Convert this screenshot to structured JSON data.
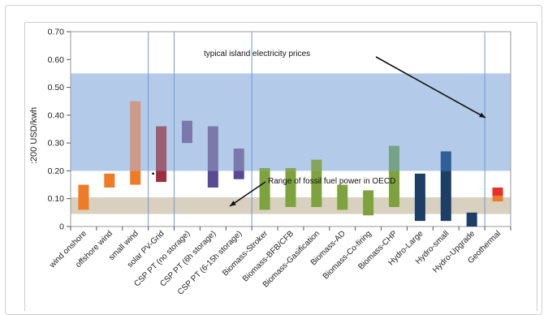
{
  "chart_data": {
    "type": "floating-bar",
    "ylabel": ":200 USD/kwh",
    "ylim": [
      0,
      0.7
    ],
    "yticks": [
      "0",
      "0.10",
      "0.20",
      "0.30",
      "0.40",
      "0.50",
      "0.60",
      "0.70"
    ],
    "categories": [
      "wind onshore",
      "offshore wind",
      "small wind",
      "solar PV-Grid",
      "CSP PT (no storage)",
      "CSP PT (6h storage)",
      "CSP PT (6-15h storage)",
      "Biomass-Stroker",
      "Biomass-BFB/CFB",
      "Biomass-Gasification",
      "Biomass-AD",
      "Biomass-Co-firing",
      "Biomass-CHP",
      "Hydro-Large",
      "Hydro-small",
      "Hydro-Upgrade",
      "Geothermal"
    ],
    "bands": [
      {
        "name": "typical island electricity prices",
        "from": 0.2,
        "to": 0.55,
        "color": "#b3cbe9"
      },
      {
        "name": "Range of fossil fuel power in OECD",
        "from": 0.045,
        "to": 0.105,
        "color": "#d8d1bf"
      }
    ],
    "bars": [
      {
        "segments": [
          [
            0.06,
            0.15,
            "#ef7b27"
          ]
        ]
      },
      {
        "segments": [
          [
            0.14,
            0.19,
            "#ef7b27"
          ]
        ]
      },
      {
        "segments": [
          [
            0.15,
            0.2,
            "#ef7b27"
          ],
          [
            0.2,
            0.45,
            "#cf9a85"
          ]
        ]
      },
      {
        "segments": [
          [
            0.16,
            0.2,
            "#9b2f3d"
          ],
          [
            0.2,
            0.36,
            "#9b5f74"
          ]
        ]
      },
      {
        "segments": [
          [
            0.3,
            0.38,
            "#7b78ac"
          ]
        ]
      },
      {
        "segments": [
          [
            0.14,
            0.2,
            "#584a96"
          ],
          [
            0.2,
            0.36,
            "#7b78ac"
          ]
        ]
      },
      {
        "segments": [
          [
            0.17,
            0.2,
            "#584a96"
          ],
          [
            0.2,
            0.28,
            "#7b78ac"
          ]
        ]
      },
      {
        "segments": [
          [
            0.06,
            0.2,
            "#7ea33e"
          ],
          [
            0.2,
            0.21,
            "#84a55a"
          ]
        ]
      },
      {
        "segments": [
          [
            0.07,
            0.2,
            "#7ea33e"
          ],
          [
            0.2,
            0.21,
            "#84a55a"
          ]
        ]
      },
      {
        "segments": [
          [
            0.07,
            0.2,
            "#7ea33e"
          ],
          [
            0.2,
            0.24,
            "#84a55a"
          ]
        ]
      },
      {
        "segments": [
          [
            0.06,
            0.15,
            "#7ea33e"
          ]
        ]
      },
      {
        "segments": [
          [
            0.04,
            0.13,
            "#7ea33e"
          ]
        ]
      },
      {
        "segments": [
          [
            0.07,
            0.2,
            "#7ea33e"
          ],
          [
            0.2,
            0.29,
            "#76a385"
          ]
        ]
      },
      {
        "segments": [
          [
            0.02,
            0.19,
            "#1d3e67"
          ]
        ]
      },
      {
        "segments": [
          [
            0.02,
            0.2,
            "#1d3e67"
          ],
          [
            0.2,
            0.27,
            "#2f5f96"
          ]
        ]
      },
      {
        "segments": [
          [
            0.0,
            0.05,
            "#1d3e67"
          ]
        ]
      },
      {
        "segments": [
          [
            0.09,
            0.11,
            "#ef7b27"
          ],
          [
            0.11,
            0.14,
            "#e8302a"
          ]
        ]
      }
    ],
    "grid": false
  }
}
